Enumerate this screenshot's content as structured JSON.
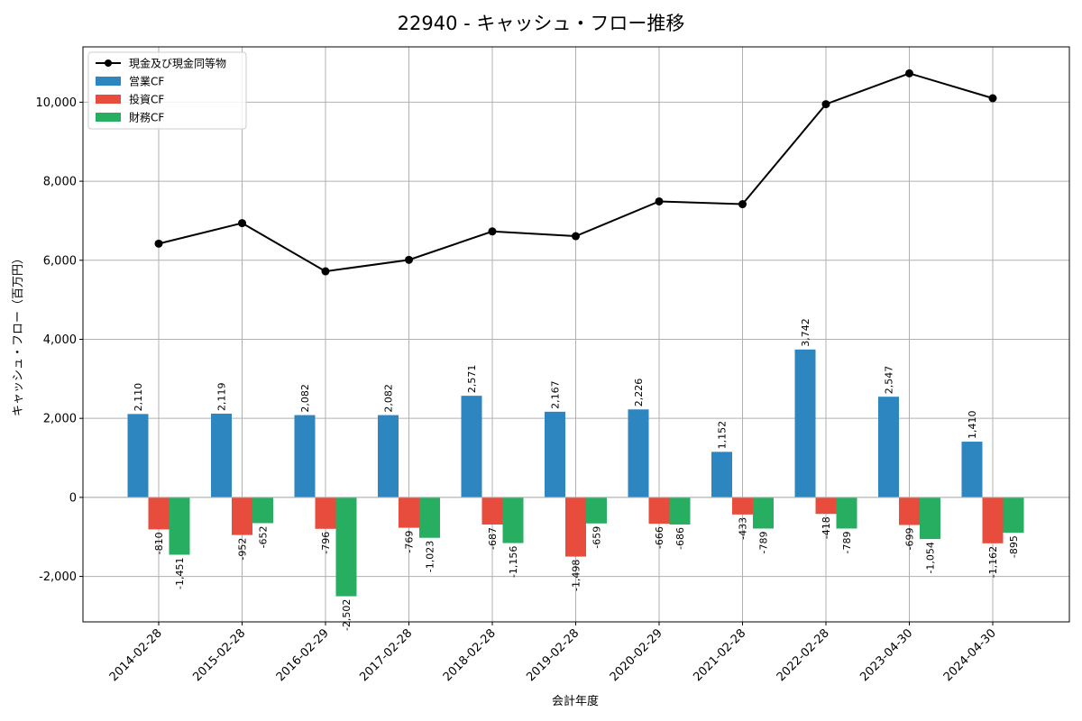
{
  "chart_data": {
    "type": "bar",
    "title": "22940 - キャッシュ・フロー推移",
    "xlabel": "会計年度",
    "ylabel": "キャッシュ・フロー（百万円）",
    "categories": [
      "2014-02-28",
      "2015-02-28",
      "2016-02-29",
      "2017-02-28",
      "2018-02-28",
      "2019-02-28",
      "2020-02-29",
      "2021-02-28",
      "2022-02-28",
      "2023-04-30",
      "2024-04-30"
    ],
    "series": [
      {
        "name": "営業CF",
        "kind": "bar",
        "color": "#2e86c1",
        "values": [
          2110,
          2119,
          2082,
          2082,
          2571,
          2167,
          2226,
          1152,
          3742,
          2547,
          1410
        ],
        "labels": [
          "2,110",
          "2,119",
          "2,082",
          "2,082",
          "2,571",
          "2,167",
          "2,226",
          "1,152",
          "3,742",
          "2,547",
          "1,410"
        ]
      },
      {
        "name": "投資CF",
        "kind": "bar",
        "color": "#e74c3c",
        "values": [
          -810,
          -952,
          -796,
          -769,
          -687,
          -1498,
          -666,
          -433,
          -418,
          -699,
          -1162
        ],
        "labels": [
          "-810",
          "-952",
          "-796",
          "-769",
          "-687",
          "-1,498",
          "-666",
          "-433",
          "-418",
          "-699",
          "-1,162"
        ]
      },
      {
        "name": "財務CF",
        "kind": "bar",
        "color": "#27ae60",
        "values": [
          -1451,
          -652,
          -2502,
          -1023,
          -1156,
          -659,
          -686,
          -789,
          -789,
          -1054,
          -895
        ],
        "labels": [
          "-1,451",
          "-652",
          "-2,502",
          "-1,023",
          "-1,156",
          "-659",
          "-686",
          "-789",
          "-789",
          "-1,054",
          "-895"
        ]
      },
      {
        "name": "現金及び現金同等物",
        "kind": "line",
        "color": "#000000",
        "values": [
          6420,
          6940,
          5720,
          6010,
          6730,
          6610,
          7490,
          7420,
          9950,
          10730,
          10100
        ]
      }
    ],
    "legend_order": [
      "現金及び現金同等物",
      "営業CF",
      "投資CF",
      "財務CF"
    ],
    "yticks": [
      -2000,
      0,
      2000,
      4000,
      6000,
      8000,
      10000
    ],
    "ytick_labels": [
      "-2,000",
      "0",
      "2,000",
      "4,000",
      "6,000",
      "8,000",
      "10,000"
    ],
    "ylim": [
      -3150,
      11400
    ],
    "grid": true,
    "legend_position": "top-left"
  }
}
